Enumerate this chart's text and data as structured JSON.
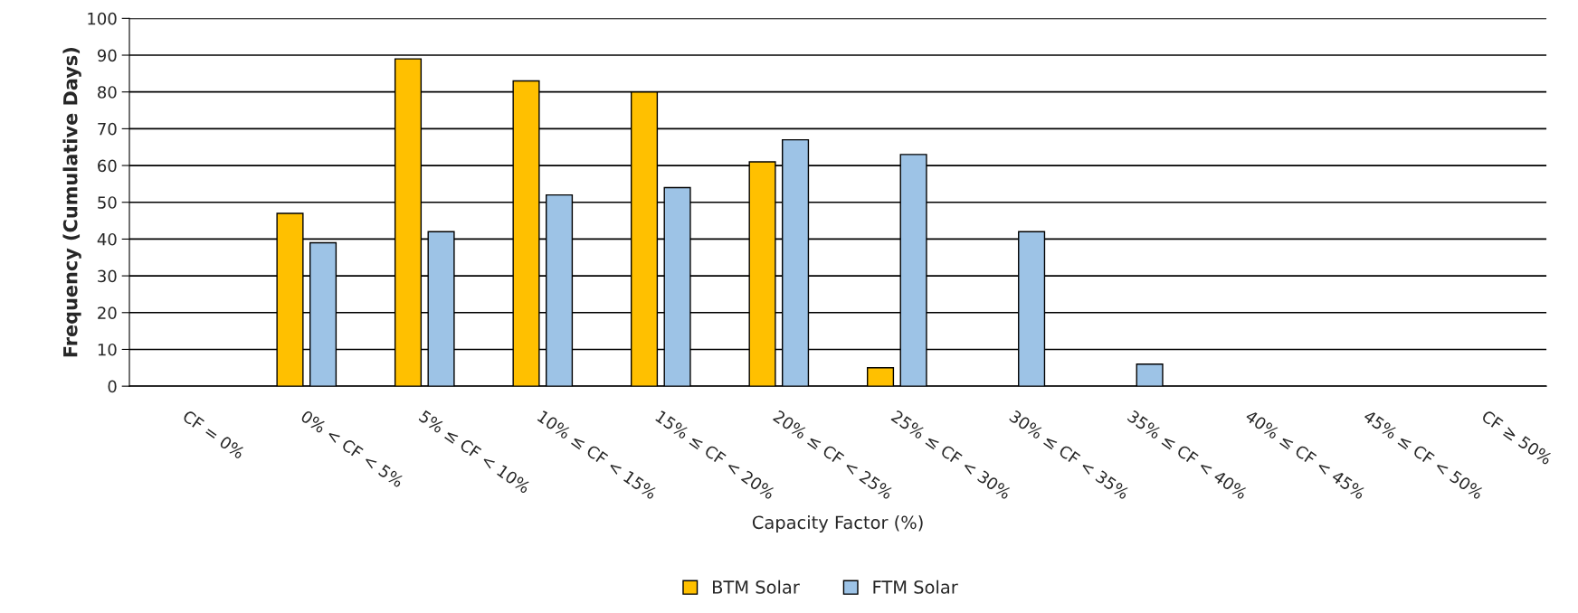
{
  "chart_data": {
    "type": "bar",
    "xlabel": "Capacity Factor (%)",
    "ylabel": "Frequency (Cumulative Days)",
    "categories": [
      "CF = 0%",
      "0% < CF < 5%",
      "5% ≤ CF < 10%",
      "10% ≤ CF < 15%",
      "15% ≤ CF < 20%",
      "20% ≤ CF < 25%",
      "25% ≤ CF < 30%",
      "30% ≤ CF < 35%",
      "35% ≤ CF < 40%",
      "40% ≤ CF < 45%",
      "45% ≤ CF < 50%",
      "CF ≥ 50%"
    ],
    "series": [
      {
        "name": "BTM Solar",
        "color": "#ffc000",
        "values": [
          0,
          47,
          89,
          83,
          80,
          61,
          5,
          0,
          0,
          0,
          0,
          0
        ]
      },
      {
        "name": "FTM Solar",
        "color": "#9dc3e6",
        "values": [
          0,
          39,
          42,
          52,
          54,
          67,
          63,
          42,
          6,
          0,
          0,
          0
        ]
      }
    ],
    "ylim": [
      0,
      100
    ],
    "yticks": [
      0,
      10,
      20,
      30,
      40,
      50,
      60,
      70,
      80,
      90,
      100
    ],
    "grid": "y",
    "legend": "bottom"
  }
}
